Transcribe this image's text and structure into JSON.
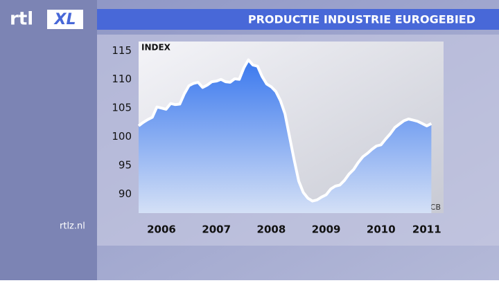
{
  "chart_data": {
    "type": "area",
    "logo": [
      "rtl",
      "XL"
    ],
    "title": "PRODUCTIE INDUSTRIE EUROGEBIED",
    "y_label": "INDEX",
    "source": "Bron: ECB",
    "brand": "rtlz.nl",
    "categories": [
      null,
      null,
      null,
      null,
      null,
      "2006",
      null,
      null,
      null,
      null,
      null,
      null,
      null,
      null,
      null,
      null,
      null,
      "2007",
      null,
      null,
      null,
      null,
      null,
      null,
      null,
      null,
      null,
      null,
      null,
      "2008",
      null,
      null,
      null,
      null,
      null,
      null,
      null,
      null,
      null,
      null,
      null,
      "2009",
      null,
      null,
      null,
      null,
      null,
      null,
      null,
      null,
      null,
      null,
      null,
      "2010",
      null,
      null,
      null,
      null,
      null,
      null,
      null,
      null,
      null,
      "2011",
      null
    ],
    "values": [
      101.9,
      102.5,
      103.0,
      103.4,
      105.2,
      105.0,
      104.8,
      105.8,
      105.6,
      105.7,
      107.5,
      108.9,
      109.3,
      109.5,
      108.6,
      109.0,
      109.6,
      109.7,
      110.0,
      109.6,
      109.5,
      110.1,
      110.0,
      112.0,
      113.4,
      112.5,
      112.3,
      110.5,
      109.2,
      108.7,
      107.9,
      106.3,
      104.0,
      100.0,
      96.0,
      92.3,
      90.3,
      89.3,
      88.8,
      89.0,
      89.5,
      89.9,
      90.9,
      91.4,
      91.6,
      92.4,
      93.5,
      94.3,
      95.5,
      96.5,
      97.1,
      97.8,
      98.4,
      98.6,
      99.6,
      100.5,
      101.6,
      102.2,
      102.8,
      103.1,
      102.9,
      102.7,
      102.3,
      101.9,
      102.3
    ],
    "color": "#ffffff",
    "fill_color": "#3f7ff0",
    "ylim": [
      86.7,
      116.6
    ],
    "yticks": [
      90,
      95,
      100,
      105,
      110,
      115
    ],
    "grid": false
  }
}
